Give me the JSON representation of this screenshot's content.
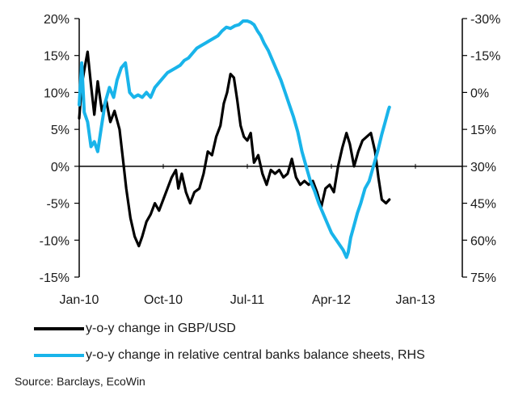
{
  "chart_data": {
    "type": "line",
    "x_ticks": [
      "Jan-10",
      "Oct-10",
      "Jul-11",
      "Apr-12",
      "Jan-13"
    ],
    "left_axis": {
      "ylim": [
        -15,
        20
      ],
      "ticks": [
        20,
        15,
        10,
        5,
        0,
        -5,
        -10,
        -15
      ],
      "tick_labels": [
        "20%",
        "15%",
        "10%",
        "5%",
        "0%",
        "-5%",
        "-10%",
        "-15%"
      ]
    },
    "right_axis": {
      "ylim": [
        -30,
        75
      ],
      "inverted": true,
      "ticks": [
        -30,
        -15,
        0,
        15,
        30,
        45,
        60,
        75
      ],
      "tick_labels": [
        "-30%",
        "-15%",
        "0%",
        "15%",
        "30%",
        "45%",
        "60%",
        "75%"
      ]
    },
    "zero_line": true,
    "series": [
      {
        "name": "y-o-y change in GBP/USD",
        "axis": "left",
        "color": "#000000",
        "points": [
          [
            0.0,
            6.5
          ],
          [
            0.03,
            11.0
          ],
          [
            0.06,
            13.0
          ],
          [
            0.1,
            15.5
          ],
          [
            0.14,
            11.0
          ],
          [
            0.18,
            7.0
          ],
          [
            0.22,
            11.5
          ],
          [
            0.27,
            7.5
          ],
          [
            0.32,
            9.0
          ],
          [
            0.37,
            6.0
          ],
          [
            0.42,
            7.5
          ],
          [
            0.48,
            5.0
          ],
          [
            0.52,
            1.0
          ],
          [
            0.56,
            -3.0
          ],
          [
            0.61,
            -7.0
          ],
          [
            0.66,
            -9.5
          ],
          [
            0.71,
            -10.8
          ],
          [
            0.75,
            -9.5
          ],
          [
            0.8,
            -7.5
          ],
          [
            0.85,
            -6.5
          ],
          [
            0.9,
            -5.0
          ],
          [
            0.95,
            -6.0
          ],
          [
            1.0,
            -4.5
          ],
          [
            1.05,
            -3.0
          ],
          [
            1.1,
            -1.5
          ],
          [
            1.15,
            -0.5
          ],
          [
            1.18,
            -3.0
          ],
          [
            1.22,
            -1.0
          ],
          [
            1.27,
            -3.5
          ],
          [
            1.32,
            -5.0
          ],
          [
            1.37,
            -3.5
          ],
          [
            1.43,
            -3.0
          ],
          [
            1.48,
            -1.0
          ],
          [
            1.53,
            2.0
          ],
          [
            1.58,
            1.5
          ],
          [
            1.63,
            4.0
          ],
          [
            1.68,
            5.5
          ],
          [
            1.72,
            8.5
          ],
          [
            1.76,
            10.0
          ],
          [
            1.8,
            12.5
          ],
          [
            1.84,
            12.0
          ],
          [
            1.88,
            9.0
          ],
          [
            1.92,
            5.5
          ],
          [
            1.96,
            4.0
          ],
          [
            2.0,
            3.5
          ],
          [
            2.04,
            4.5
          ],
          [
            2.08,
            0.5
          ],
          [
            2.13,
            1.5
          ],
          [
            2.18,
            -1.0
          ],
          [
            2.23,
            -2.5
          ],
          [
            2.28,
            -0.5
          ],
          [
            2.33,
            -1.0
          ],
          [
            2.38,
            -0.5
          ],
          [
            2.43,
            -1.5
          ],
          [
            2.48,
            -1.0
          ],
          [
            2.53,
            1.0
          ],
          [
            2.58,
            -1.5
          ],
          [
            2.63,
            -2.5
          ],
          [
            2.68,
            -2.0
          ],
          [
            2.73,
            -2.5
          ],
          [
            2.78,
            -2.0
          ],
          [
            2.83,
            -3.5
          ],
          [
            2.88,
            -5.5
          ],
          [
            2.93,
            -3.0
          ],
          [
            2.98,
            -2.5
          ],
          [
            3.03,
            -3.5
          ],
          [
            3.08,
            0.0
          ],
          [
            3.13,
            2.5
          ],
          [
            3.18,
            4.5
          ],
          [
            3.22,
            3.0
          ],
          [
            3.27,
            0.0
          ],
          [
            3.32,
            2.0
          ],
          [
            3.37,
            3.5
          ],
          [
            3.42,
            4.0
          ],
          [
            3.47,
            4.5
          ],
          [
            3.52,
            2.0
          ],
          [
            3.56,
            -1.5
          ],
          [
            3.6,
            -4.5
          ],
          [
            3.65,
            -5.0
          ],
          [
            3.69,
            -4.5
          ]
        ]
      },
      {
        "name": "y-o-y change in relative central banks balance sheets, RHS",
        "axis": "right",
        "color": "#19b4ea",
        "points": [
          [
            0.0,
            5.0
          ],
          [
            0.03,
            -12.0
          ],
          [
            0.06,
            8.0
          ],
          [
            0.1,
            12.0
          ],
          [
            0.14,
            22.0
          ],
          [
            0.18,
            20.0
          ],
          [
            0.22,
            24.0
          ],
          [
            0.26,
            15.0
          ],
          [
            0.31,
            4.0
          ],
          [
            0.36,
            -2.0
          ],
          [
            0.41,
            2.0
          ],
          [
            0.45,
            -5.0
          ],
          [
            0.5,
            -10.0
          ],
          [
            0.55,
            -12.0
          ],
          [
            0.6,
            0.0
          ],
          [
            0.65,
            2.0
          ],
          [
            0.7,
            1.0
          ],
          [
            0.75,
            2.0
          ],
          [
            0.8,
            0.0
          ],
          [
            0.85,
            2.0
          ],
          [
            0.9,
            -2.0
          ],
          [
            0.95,
            -4.0
          ],
          [
            1.0,
            -6.0
          ],
          [
            1.05,
            -8.0
          ],
          [
            1.1,
            -9.0
          ],
          [
            1.15,
            -10.0
          ],
          [
            1.2,
            -11.0
          ],
          [
            1.25,
            -13.0
          ],
          [
            1.3,
            -14.0
          ],
          [
            1.35,
            -16.0
          ],
          [
            1.4,
            -18.0
          ],
          [
            1.45,
            -19.0
          ],
          [
            1.5,
            -20.0
          ],
          [
            1.55,
            -21.0
          ],
          [
            1.6,
            -22.0
          ],
          [
            1.65,
            -23.0
          ],
          [
            1.7,
            -25.0
          ],
          [
            1.75,
            -26.5
          ],
          [
            1.8,
            -26.0
          ],
          [
            1.85,
            -27.0
          ],
          [
            1.9,
            -27.5
          ],
          [
            1.95,
            -29.0
          ],
          [
            2.0,
            -29.0
          ],
          [
            2.04,
            -28.5
          ],
          [
            2.08,
            -27.5
          ],
          [
            2.12,
            -25.0
          ],
          [
            2.16,
            -23.0
          ],
          [
            2.2,
            -20.0
          ],
          [
            2.25,
            -17.0
          ],
          [
            2.3,
            -13.0
          ],
          [
            2.35,
            -9.0
          ],
          [
            2.4,
            -5.0
          ],
          [
            2.45,
            0.0
          ],
          [
            2.5,
            5.0
          ],
          [
            2.55,
            10.0
          ],
          [
            2.6,
            16.0
          ],
          [
            2.65,
            24.0
          ],
          [
            2.7,
            30.0
          ],
          [
            2.75,
            36.0
          ],
          [
            2.8,
            40.0
          ],
          [
            2.85,
            45.0
          ],
          [
            2.9,
            49.0
          ],
          [
            2.95,
            53.0
          ],
          [
            3.0,
            57.0
          ],
          [
            3.05,
            59.5
          ],
          [
            3.1,
            62.0
          ],
          [
            3.14,
            64.0
          ],
          [
            3.18,
            67.0
          ],
          [
            3.2,
            65.0
          ],
          [
            3.23,
            59.0
          ],
          [
            3.27,
            54.0
          ],
          [
            3.31,
            49.0
          ],
          [
            3.35,
            45.0
          ],
          [
            3.4,
            39.0
          ],
          [
            3.45,
            36.0
          ],
          [
            3.5,
            30.0
          ],
          [
            3.55,
            24.0
          ],
          [
            3.6,
            17.0
          ],
          [
            3.64,
            12.0
          ],
          [
            3.68,
            7.0
          ],
          [
            3.69,
            6.0
          ]
        ]
      }
    ],
    "legend_position": "bottom"
  },
  "source": "Source: Barclays, EcoWin"
}
